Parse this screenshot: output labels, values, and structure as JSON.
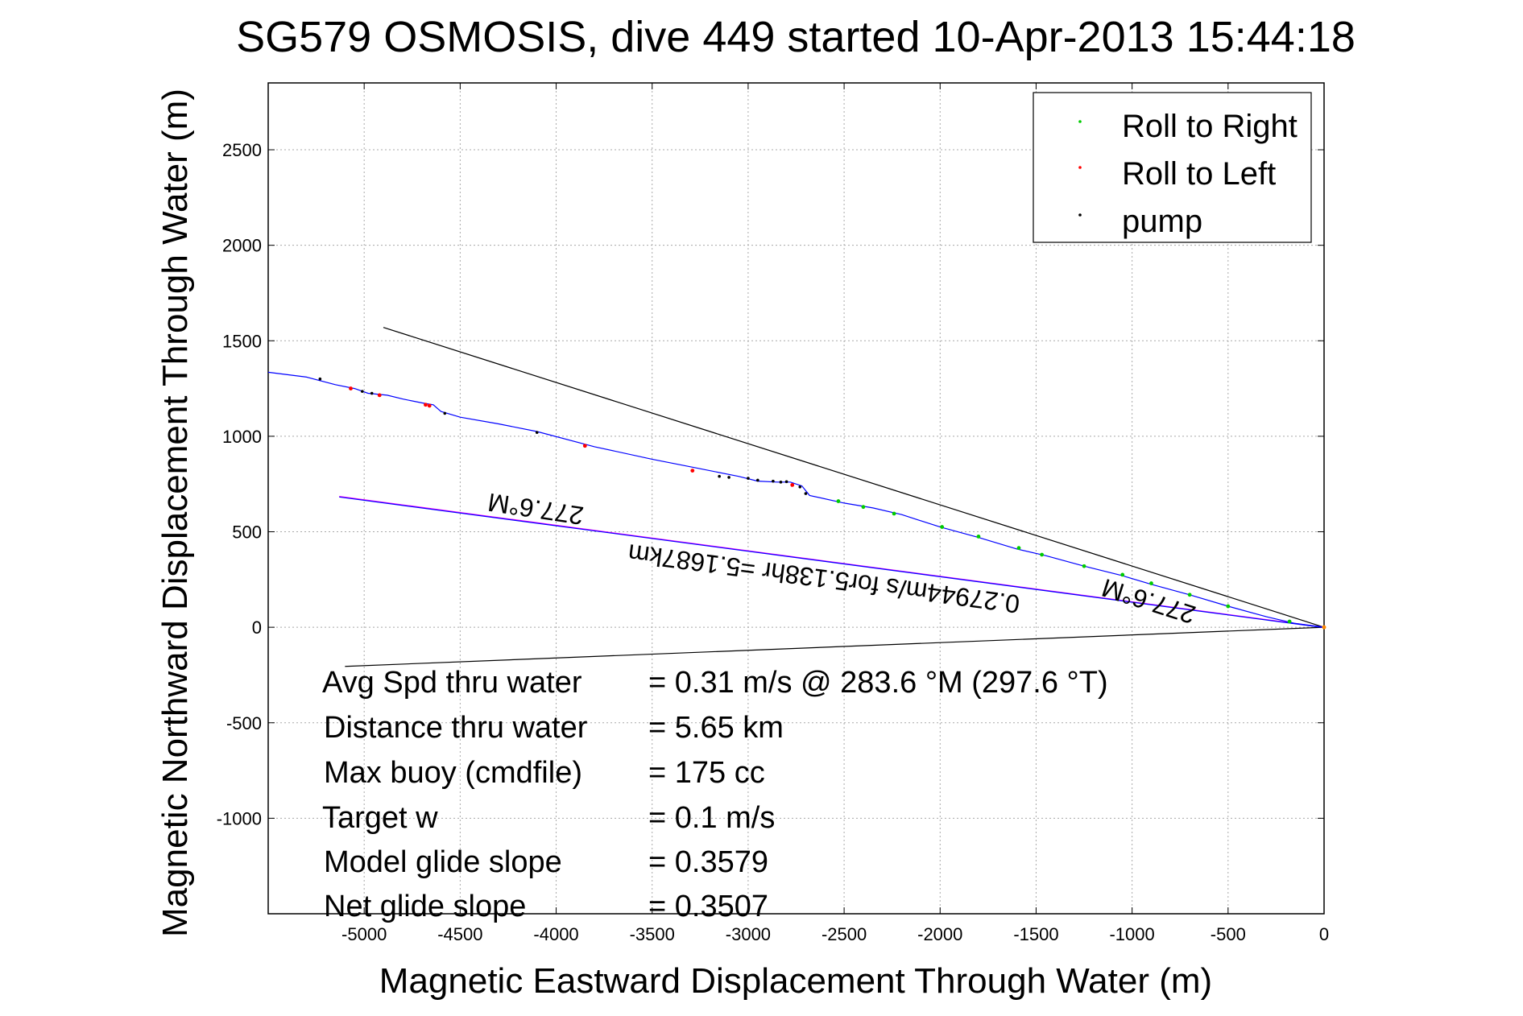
{
  "chart_data": {
    "type": "line",
    "title": "SG579 OSMOSIS, dive 449 started 10-Apr-2013 15:44:18",
    "xlabel": "Magnetic Eastward Displacement Through Water (m)",
    "ylabel": "Magnetic Northward Displacement Through Water (m)",
    "xlim": [
      -5500,
      0
    ],
    "ylim": [
      -1500,
      2850
    ],
    "xticks": [
      -5000,
      -4500,
      -4000,
      -3500,
      -3000,
      -2500,
      -2000,
      -1500,
      -1000,
      -500,
      0
    ],
    "yticks": [
      -1000,
      -500,
      0,
      500,
      1000,
      1500,
      2000,
      2500
    ],
    "grid": true,
    "legend_position": "top-right",
    "legend": [
      {
        "label": "Roll to Right",
        "color": "#00cc00"
      },
      {
        "label": "Roll to Left",
        "color": "#ff0000"
      },
      {
        "label": "pump",
        "color": "#000000"
      }
    ],
    "track": {
      "color": "#0000ff",
      "x": [
        -5500,
        -5300,
        -5150,
        -5050,
        -4980,
        -4880,
        -4800,
        -4700,
        -4640,
        -4600,
        -4500,
        -4300,
        -4100,
        -3800,
        -3500,
        -3250,
        -3050,
        -2950,
        -2850,
        -2780,
        -2720,
        -2680,
        -2500,
        -2350,
        -2200,
        -2000,
        -1800,
        -1600,
        -1450,
        -1250,
        -1050,
        -900,
        -700,
        -500,
        -300,
        -150,
        0
      ],
      "y": [
        1335,
        1310,
        1270,
        1250,
        1225,
        1215,
        1195,
        1175,
        1165,
        1130,
        1100,
        1065,
        1025,
        945,
        880,
        830,
        790,
        765,
        760,
        760,
        740,
        690,
        650,
        625,
        590,
        525,
        470,
        410,
        375,
        320,
        270,
        225,
        170,
        110,
        55,
        20,
        0
      ]
    },
    "roll_right_points": {
      "x": [
        -2530,
        -2400,
        -2240,
        -1990,
        -1800,
        -1590,
        -1470,
        -1250,
        -1050,
        -900,
        -700,
        -500,
        -180
      ],
      "y": [
        660,
        630,
        595,
        525,
        475,
        415,
        380,
        320,
        275,
        230,
        170,
        110,
        30
      ]
    },
    "roll_left_points": {
      "x": [
        -5070,
        -4920,
        -4680,
        -4660,
        -3850,
        -3290,
        -2770
      ],
      "y": [
        1250,
        1215,
        1165,
        1160,
        950,
        820,
        745
      ]
    },
    "pump_points": {
      "x": [
        -5230,
        -5010,
        -4960,
        -4580,
        -4100,
        -3150,
        -3100,
        -3000,
        -2950,
        -2870,
        -2830,
        -2800,
        -2730,
        -2700
      ],
      "y": [
        1300,
        1235,
        1225,
        1120,
        1020,
        790,
        785,
        780,
        770,
        765,
        760,
        762,
        735,
        700
      ]
    },
    "reference_lines": [
      {
        "color": "#000000",
        "x": [
          -4900,
          0
        ],
        "y": [
          1570,
          0
        ]
      },
      {
        "color": "#000000",
        "x": [
          -5100,
          0
        ],
        "y": [
          -205,
          0
        ]
      },
      {
        "color": "#ff00ff",
        "x": [
          -5130,
          0
        ],
        "y": [
          685,
          0
        ]
      },
      {
        "color": "#0000ff",
        "x": [
          -5130,
          0
        ],
        "y": [
          682,
          -2
        ]
      }
    ],
    "annotations": [
      {
        "text": "277.6°M",
        "x": -4100,
        "y": 665,
        "rotation": 188.5
      },
      {
        "text": "0.27944m/s for5.138hr =5.1687km",
        "x": -2600,
        "y": 300,
        "rotation": 187.5
      },
      {
        "text": "277.6°M",
        "x": -900,
        "y": 180,
        "rotation": 197.5
      }
    ]
  },
  "stats": [
    {
      "label": "Avg Spd thru water",
      "value": "=  0.31 m/s @ 283.6 °M (297.6 °T)"
    },
    {
      "label": "Distance thru water",
      "value": "=  5.65 km"
    },
    {
      "label": "Max buoy (cmdfile)",
      "value": "= 175 cc"
    },
    {
      "label": "Target w",
      "value": "= 0.1 m/s"
    },
    {
      "label": "Model glide slope",
      "value": "= 0.3579"
    },
    {
      "label": "Net glide slope",
      "value": "= 0.3507"
    }
  ]
}
